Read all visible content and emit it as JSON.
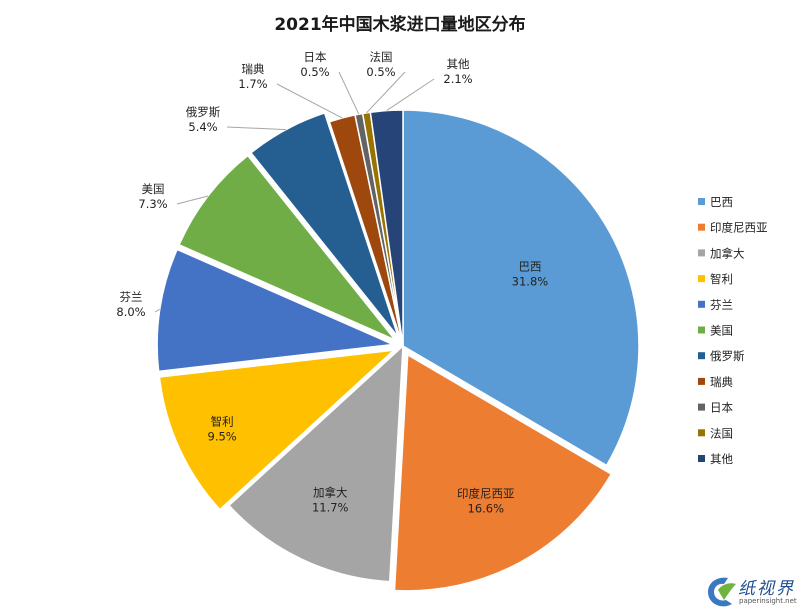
{
  "chart_data": {
    "type": "pie",
    "title": "2021年中国木浆进口量地区分布",
    "slices": [
      {
        "label": "巴西",
        "value": 31.8,
        "display": "31.8%",
        "color": "#5b9bd5"
      },
      {
        "label": "印度尼西亚",
        "value": 16.6,
        "display": "16.6%",
        "color": "#ed7d31"
      },
      {
        "label": "加拿大",
        "value": 11.7,
        "display": "11.7%",
        "color": "#a5a5a5"
      },
      {
        "label": "智利",
        "value": 9.5,
        "display": "9.5%",
        "color": "#ffc000"
      },
      {
        "label": "芬兰",
        "value": 8.0,
        "display": "8.0%",
        "color": "#4472c4"
      },
      {
        "label": "美国",
        "value": 7.3,
        "display": "7.3%",
        "color": "#70ad47"
      },
      {
        "label": "俄罗斯",
        "value": 5.4,
        "display": "5.4%",
        "color": "#255e91"
      },
      {
        "label": "瑞典",
        "value": 1.7,
        "display": "1.7%",
        "color": "#9e480e"
      },
      {
        "label": "日本",
        "value": 0.5,
        "display": "0.5%",
        "color": "#636363"
      },
      {
        "label": "法国",
        "value": 0.5,
        "display": "0.5%",
        "color": "#997300"
      },
      {
        "label": "其他",
        "value": 2.1,
        "display": "2.1%",
        "color": "#264478"
      }
    ],
    "legend_position": "right",
    "exploded": [
      "印度尼西亚",
      "智利",
      "芬兰",
      "美国",
      "俄罗斯"
    ]
  },
  "watermark": {
    "name": "纸视界",
    "url": "paperinsight.net"
  }
}
